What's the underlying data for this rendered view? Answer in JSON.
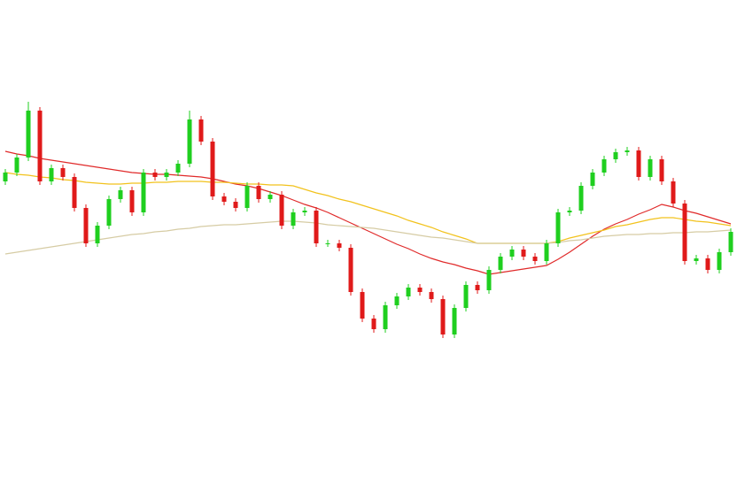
{
  "chart_data": {
    "type": "candlestick",
    "ylim": [
      0,
      556
    ],
    "up_color": "#1fcf1f",
    "down_color": "#e01a1a",
    "open": [
      351,
      361,
      378,
      431,
      351,
      366,
      356,
      321,
      281,
      301,
      331,
      341,
      316,
      361,
      356,
      361,
      371,
      421,
      396,
      334,
      328,
      321,
      346,
      331,
      336,
      301,
      316,
      318,
      281,
      281,
      276,
      226,
      196,
      184,
      211,
      221,
      231,
      226,
      218,
      178,
      208,
      234,
      228,
      251,
      266,
      274,
      266,
      261,
      281,
      316,
      318,
      346,
      361,
      376,
      384,
      386,
      356,
      376,
      351,
      326,
      261,
      264,
      251,
      271
    ],
    "high": [
      365,
      382,
      441,
      435,
      370,
      370,
      360,
      325,
      305,
      335,
      345,
      345,
      365,
      365,
      365,
      375,
      431,
      425,
      400,
      338,
      332,
      350,
      350,
      340,
      340,
      320,
      322,
      322,
      285,
      285,
      280,
      230,
      200,
      215,
      225,
      235,
      235,
      230,
      222,
      212,
      238,
      238,
      255,
      270,
      278,
      278,
      270,
      285,
      320,
      322,
      350,
      365,
      380,
      388,
      390,
      390,
      380,
      380,
      355,
      330,
      268,
      268,
      275,
      298
    ],
    "low": [
      347,
      357,
      374,
      347,
      347,
      352,
      317,
      277,
      277,
      297,
      327,
      312,
      312,
      352,
      352,
      357,
      367,
      392,
      330,
      324,
      317,
      317,
      327,
      327,
      297,
      297,
      312,
      277,
      277,
      272,
      222,
      192,
      180,
      180,
      207,
      217,
      222,
      214,
      174,
      174,
      204,
      224,
      224,
      247,
      262,
      262,
      257,
      257,
      277,
      312,
      314,
      342,
      357,
      372,
      380,
      352,
      352,
      347,
      322,
      257,
      257,
      247,
      247,
      267
    ],
    "close": [
      361,
      378,
      431,
      351,
      366,
      356,
      321,
      281,
      301,
      331,
      341,
      316,
      361,
      356,
      361,
      371,
      421,
      396,
      334,
      328,
      321,
      346,
      331,
      336,
      301,
      316,
      318,
      281,
      281,
      276,
      226,
      196,
      184,
      211,
      221,
      231,
      226,
      218,
      178,
      208,
      234,
      228,
      251,
      266,
      274,
      266,
      261,
      281,
      316,
      318,
      346,
      361,
      376,
      384,
      386,
      356,
      376,
      351,
      326,
      261,
      264,
      251,
      271,
      294
    ],
    "lines": [
      {
        "color": "#e02a2a",
        "values": [
          385,
          382,
          380,
          377,
          375,
          373,
          371,
          369,
          367,
          365,
          363,
          361,
          360,
          359,
          359,
          358,
          357,
          356,
          354,
          351,
          348,
          346,
          343,
          339,
          335,
          330,
          325,
          321,
          316,
          310,
          304,
          298,
          292,
          286,
          280,
          275,
          269,
          264,
          260,
          257,
          253,
          250,
          246,
          248,
          250,
          252,
          254,
          256,
          263,
          271,
          280,
          289,
          297,
          303,
          308,
          314,
          319,
          325,
          322,
          318,
          315,
          311,
          307,
          303
        ]
      },
      {
        "color": "#f2c21c",
        "values": [
          361,
          359,
          358,
          356,
          355,
          353,
          352,
          350,
          349,
          348,
          348,
          349,
          349,
          350,
          350,
          351,
          351,
          351,
          350,
          350,
          349,
          348,
          348,
          347,
          347,
          346,
          342,
          338,
          335,
          331,
          328,
          324,
          320,
          316,
          312,
          307,
          303,
          299,
          294,
          290,
          286,
          281,
          281,
          281,
          281,
          281,
          281,
          281,
          283,
          287,
          290,
          293,
          296,
          300,
          302,
          305,
          308,
          310,
          310,
          308,
          306,
          305,
          303,
          301
        ]
      },
      {
        "color": "#d6cca4",
        "values": [
          269,
          271,
          273,
          275,
          277,
          279,
          281,
          283,
          285,
          287,
          289,
          291,
          292,
          294,
          295,
          297,
          298,
          300,
          301,
          302,
          302,
          303,
          304,
          305,
          306,
          306,
          305,
          304,
          302,
          301,
          300,
          299,
          298,
          296,
          294,
          292,
          290,
          288,
          287,
          285,
          283,
          281,
          281,
          281,
          281,
          281,
          281,
          281,
          282,
          284,
          285,
          287,
          289,
          290,
          291,
          291,
          292,
          292,
          293,
          293,
          294,
          294,
          295,
          296
        ]
      }
    ]
  }
}
